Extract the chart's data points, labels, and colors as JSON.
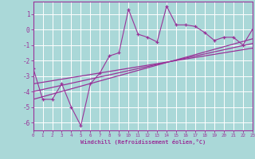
{
  "x": [
    0,
    1,
    2,
    3,
    4,
    5,
    6,
    7,
    8,
    9,
    10,
    11,
    12,
    13,
    14,
    15,
    16,
    17,
    18,
    19,
    20,
    21,
    22,
    23
  ],
  "y_main": [
    -2.5,
    -4.5,
    -4.5,
    -3.5,
    -5.0,
    -6.2,
    -3.5,
    -2.8,
    -1.7,
    -1.5,
    1.3,
    -0.3,
    -0.5,
    -0.8,
    1.5,
    0.3,
    0.3,
    0.2,
    -0.2,
    -0.7,
    -0.5,
    -0.5,
    -1.0,
    0.0
  ],
  "line_color": "#993399",
  "bg_color": "#aad8d8",
  "grid_color": "#ffffff",
  "xlim": [
    0,
    23
  ],
  "ylim": [
    -6.5,
    1.8
  ],
  "xlabel": "Windchill (Refroidissement éolien,°C)",
  "regression_lines": [
    {
      "x0": 0,
      "y0": -4.5,
      "x1": 23,
      "y1": -0.6
    },
    {
      "x0": 0,
      "y0": -4.0,
      "x1": 23,
      "y1": -0.9
    },
    {
      "x0": 0,
      "y0": -3.5,
      "x1": 23,
      "y1": -1.2
    }
  ]
}
